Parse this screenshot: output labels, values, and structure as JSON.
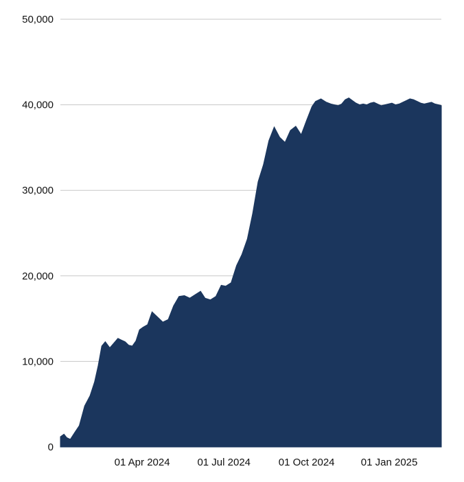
{
  "chart_data": {
    "type": "area",
    "title": "",
    "xlabel": "",
    "ylabel": "",
    "grid": true,
    "legend": "none",
    "area_color": "#1b365d",
    "grid_color": "#c7c7c7",
    "ylim": [
      0,
      50000
    ],
    "xlim": [
      "2024-01-01",
      "2025-02-28"
    ],
    "y_ticks": [
      0,
      10000,
      20000,
      30000,
      40000,
      50000
    ],
    "y_tick_labels": [
      "0",
      "10,000",
      "20,000",
      "30,000",
      "40,000",
      "50,000"
    ],
    "x_ticks": [
      "2024-04-01",
      "2024-07-01",
      "2024-10-01",
      "2025-01-01"
    ],
    "x_tick_labels": [
      "01 Apr 2024",
      "01 Jul 2024",
      "01 Oct 2024",
      "01 Jan 2025"
    ],
    "series": [
      {
        "x": [
          "2024-01-01",
          "2024-01-05",
          "2024-01-08",
          "2024-01-12",
          "2024-01-17",
          "2024-01-22",
          "2024-01-28",
          "2024-02-03",
          "2024-02-08",
          "2024-02-12",
          "2024-02-16",
          "2024-02-20",
          "2024-02-25",
          "2024-03-01",
          "2024-03-05",
          "2024-03-09",
          "2024-03-13",
          "2024-03-17",
          "2024-03-21",
          "2024-03-25",
          "2024-03-29",
          "2024-04-02",
          "2024-04-07",
          "2024-04-12",
          "2024-04-18",
          "2024-04-24",
          "2024-04-30",
          "2024-05-06",
          "2024-05-12",
          "2024-05-18",
          "2024-05-24",
          "2024-05-30",
          "2024-06-05",
          "2024-06-10",
          "2024-06-16",
          "2024-06-22",
          "2024-06-28",
          "2024-07-03",
          "2024-07-09",
          "2024-07-15",
          "2024-07-21",
          "2024-07-27",
          "2024-08-02",
          "2024-08-08",
          "2024-08-14",
          "2024-08-20",
          "2024-08-26",
          "2024-09-01",
          "2024-09-07",
          "2024-09-13",
          "2024-09-19",
          "2024-09-25",
          "2024-10-01",
          "2024-10-07",
          "2024-10-11",
          "2024-10-17",
          "2024-10-23",
          "2024-10-28",
          "2024-11-01",
          "2024-11-05",
          "2024-11-09",
          "2024-11-13",
          "2024-11-17",
          "2024-11-21",
          "2024-11-25",
          "2024-11-29",
          "2024-12-03",
          "2024-12-07",
          "2024-12-11",
          "2024-12-15",
          "2024-12-19",
          "2024-12-23",
          "2024-12-27",
          "2024-12-31",
          "2025-01-04",
          "2025-01-08",
          "2025-01-12",
          "2025-01-16",
          "2025-01-20",
          "2025-01-24",
          "2025-01-28",
          "2025-02-01",
          "2025-02-05",
          "2025-02-09",
          "2025-02-13",
          "2025-02-17",
          "2025-02-21",
          "2025-02-25",
          "2025-02-28"
        ],
        "y": [
          1200,
          1500,
          1100,
          900,
          1700,
          2500,
          4800,
          6000,
          7600,
          9500,
          11800,
          12300,
          11600,
          12200,
          12700,
          12500,
          12300,
          11900,
          11800,
          12400,
          13700,
          14000,
          14300,
          15800,
          15200,
          14600,
          14900,
          16500,
          17600,
          17700,
          17400,
          17800,
          18200,
          17400,
          17200,
          17600,
          18900,
          18800,
          19200,
          21200,
          22500,
          24300,
          27300,
          31000,
          33000,
          35800,
          37400,
          36200,
          35600,
          37000,
          37500,
          36500,
          38200,
          39800,
          40400,
          40700,
          40300,
          40100,
          40000,
          39900,
          40100,
          40600,
          40800,
          40500,
          40200,
          40000,
          40100,
          40000,
          40200,
          40300,
          40100,
          39900,
          40000,
          40100,
          40200,
          40000,
          40100,
          40300,
          40500,
          40700,
          40600,
          40400,
          40200,
          40100,
          40200,
          40300,
          40100,
          40000,
          39900
        ]
      }
    ]
  }
}
